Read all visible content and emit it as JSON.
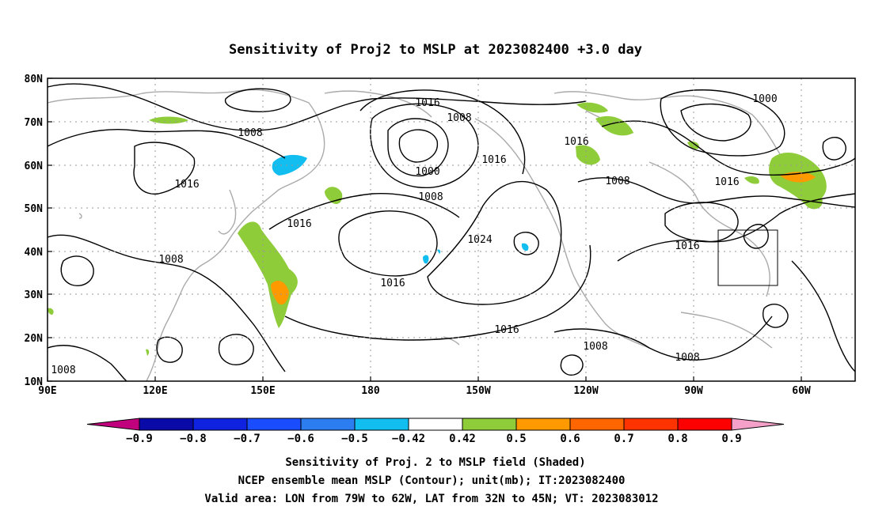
{
  "title": "Sensitivity of Proj2 to MSLP at 2023082400 +3.0 day",
  "axes": {
    "lon_labels": [
      "90E",
      "120E",
      "150E",
      "180",
      "150W",
      "120W",
      "90W",
      "60W"
    ],
    "lat_labels": [
      "80N",
      "70N",
      "60N",
      "50N",
      "40N",
      "30N",
      "20N",
      "10N"
    ]
  },
  "contour_labels": [
    "1016",
    "1008",
    "1000",
    "1016",
    "1016",
    "1008",
    "1008",
    "1016",
    "1016",
    "1024",
    "1016",
    "1016",
    "1008",
    "1008",
    "1016",
    "1000",
    "1016",
    "1008",
    "1016",
    "1008",
    "1008"
  ],
  "colorbar": {
    "labels": [
      "-0.9",
      "-0.8",
      "-0.7",
      "-0.6",
      "-0.5",
      "-0.42",
      "0.42",
      "0.5",
      "0.6",
      "0.7",
      "0.8",
      "0.9"
    ],
    "colors": [
      "#c0007c",
      "#0a0aa8",
      "#0f22e0",
      "#1a4dff",
      "#2b7df0",
      "#12bdf0",
      "#ffffff",
      "#8fcc3a",
      "#ff9900",
      "#ff6600",
      "#ff3300",
      "#ff0000",
      "#f5a0c8"
    ]
  },
  "caption": {
    "line1": "Sensitivity of Proj. 2 to MSLP field (Shaded)",
    "line2": "NCEP ensemble mean MSLP (Contour); unit(mb); IT:2023082400",
    "line3": "Valid area: LON from 79W to 62W, LAT from 32N to 45N; VT: 2023083012"
  }
}
